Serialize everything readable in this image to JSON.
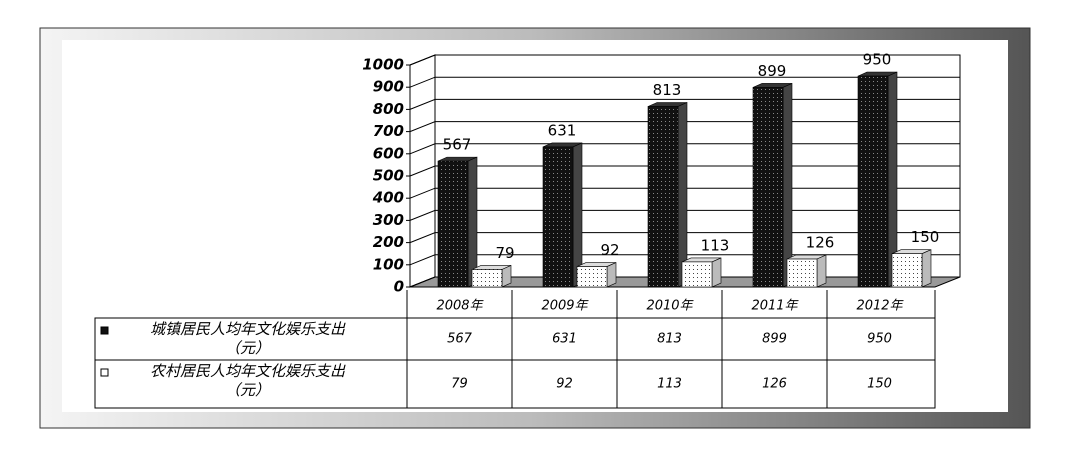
{
  "chart_data": {
    "type": "bar3d",
    "categories": [
      "2008年",
      "2009年",
      "2010年",
      "2011年",
      "2012年"
    ],
    "series": [
      {
        "name": "城镇居民人均年文化娱乐支出（元）",
        "color": "#111111",
        "values": [
          567,
          631,
          813,
          899,
          950
        ]
      },
      {
        "name": "农村居民人均年文化娱乐支出（元）",
        "color": "#ffffff",
        "values": [
          79,
          92,
          113,
          126,
          150
        ]
      }
    ],
    "ylim": [
      0,
      1000
    ],
    "yticks": [
      0,
      100,
      200,
      300,
      400,
      500,
      600,
      700,
      800,
      900,
      1000
    ],
    "grid": true
  }
}
